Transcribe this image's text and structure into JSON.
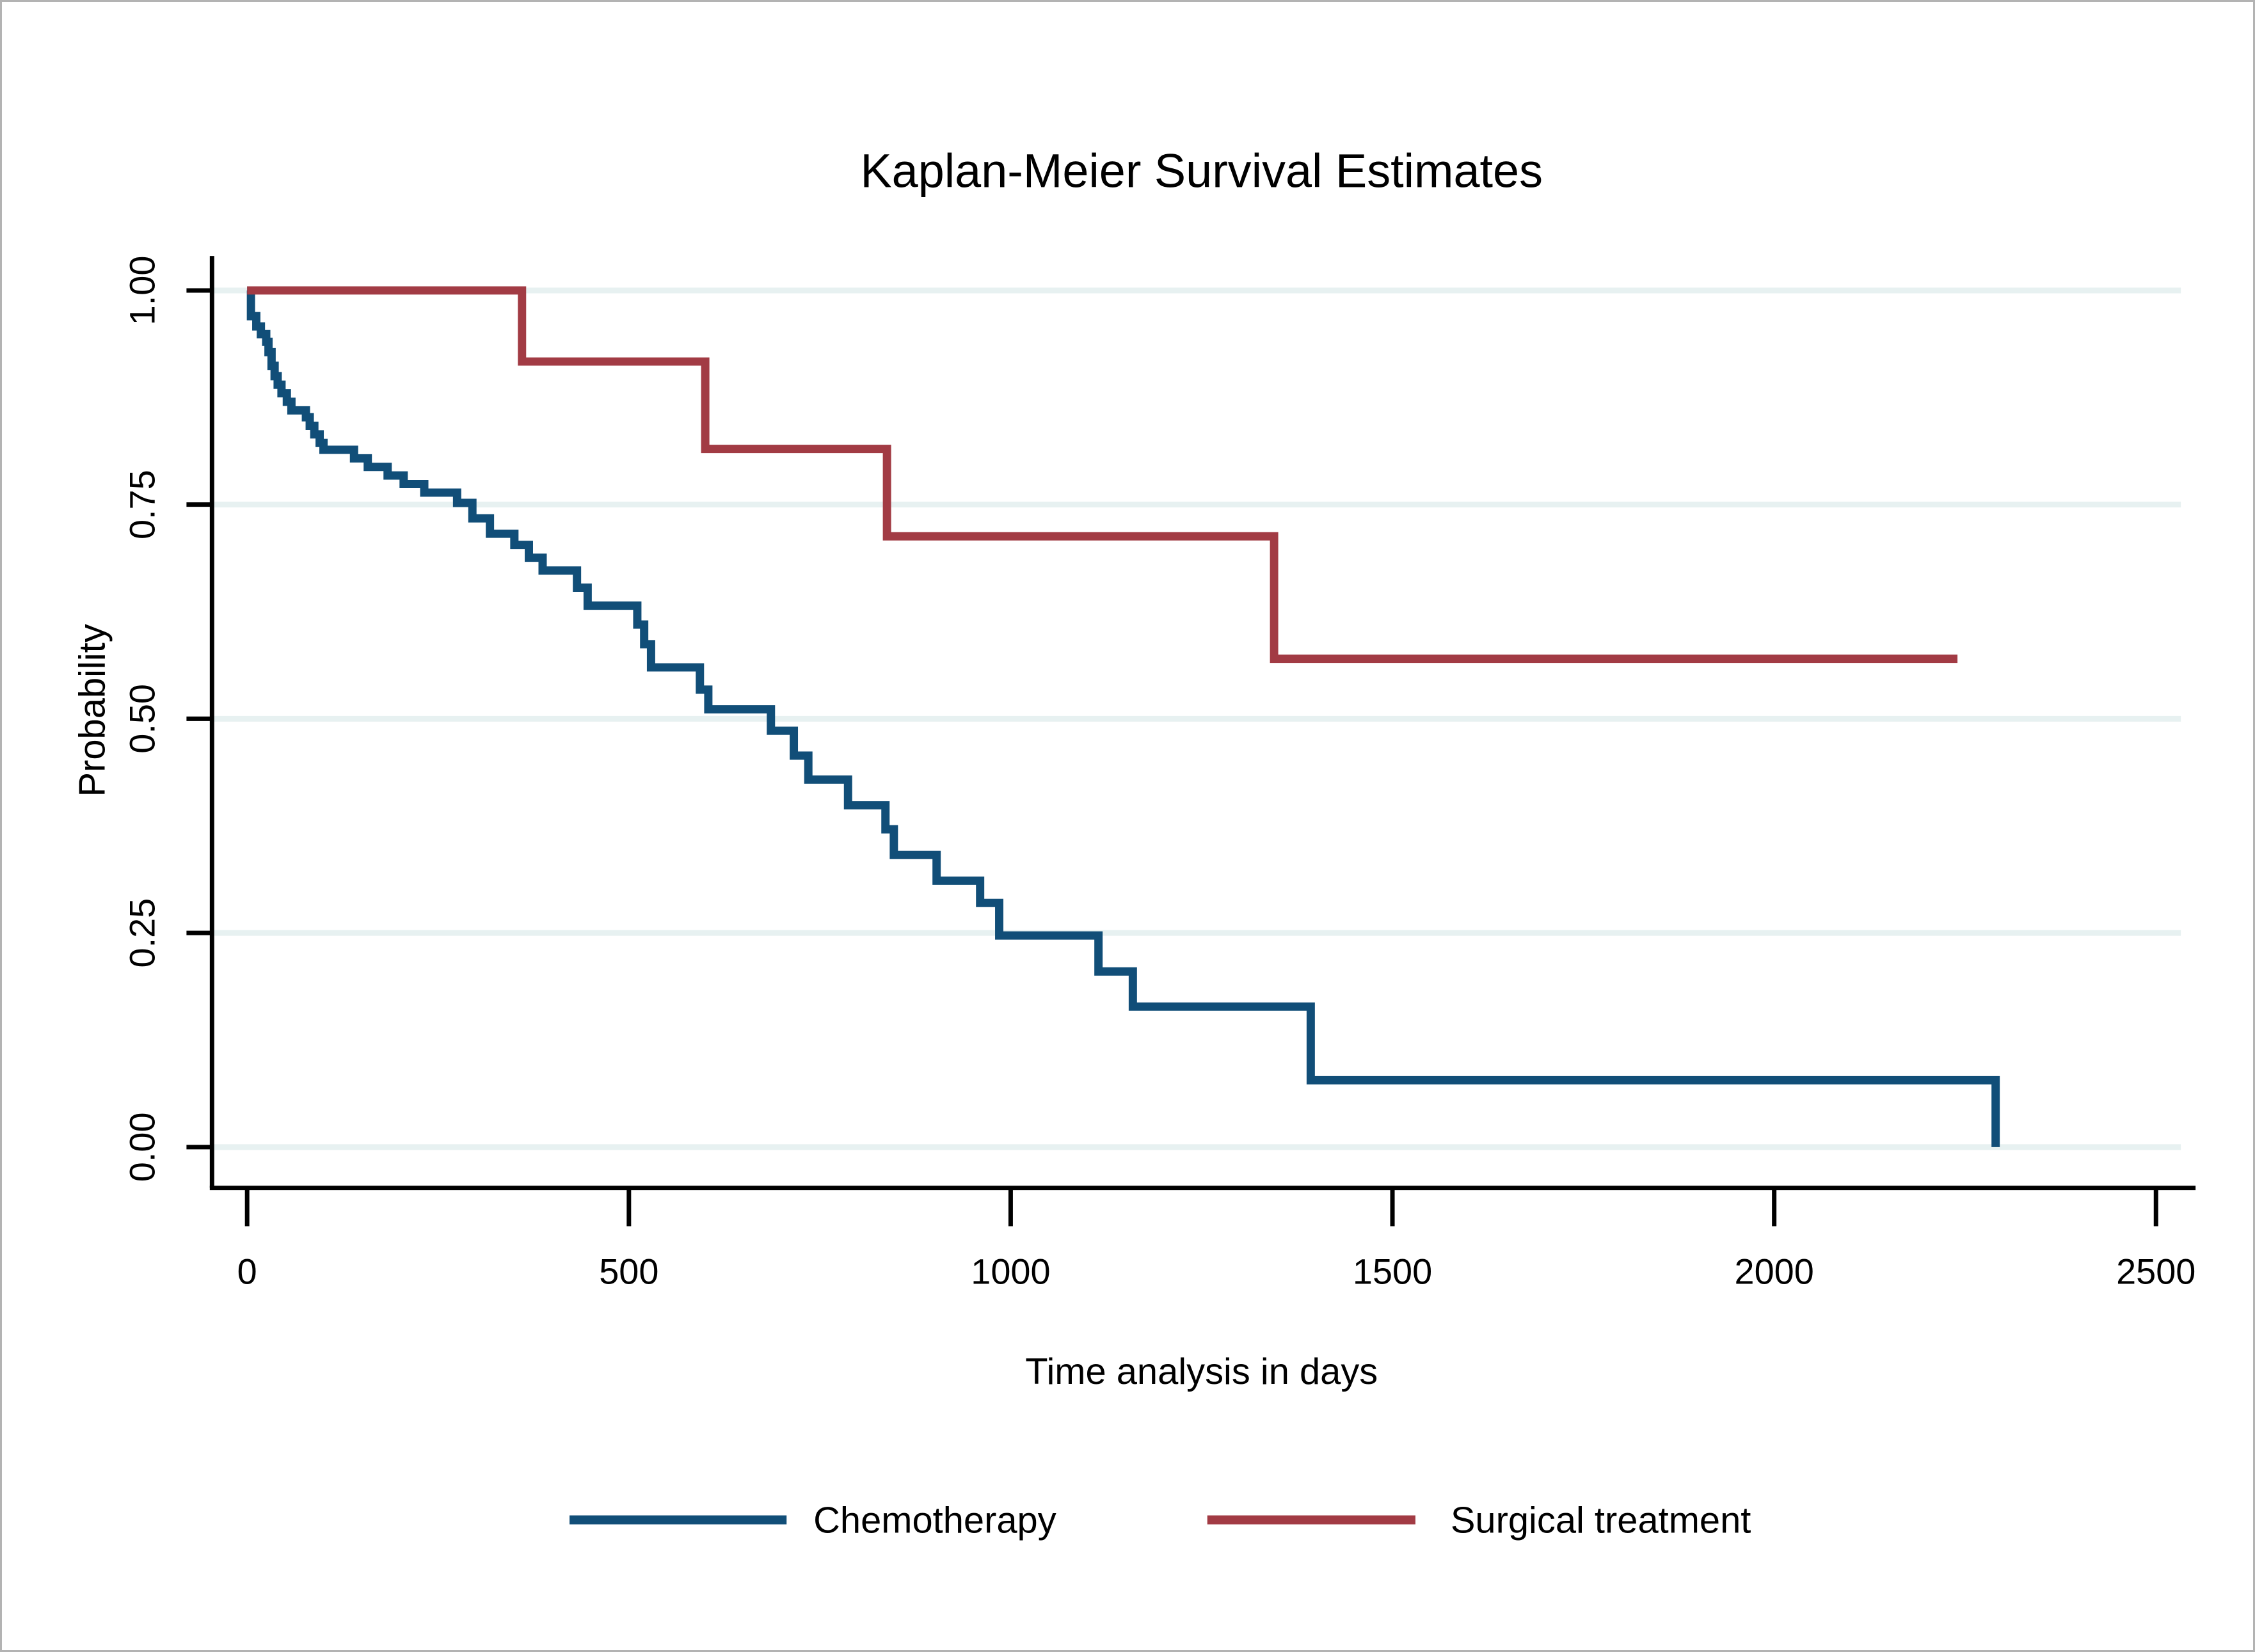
{
  "chart_data": {
    "type": "line",
    "subtype": "kaplan-meier-step",
    "title": "Kaplan-Meier Survival Estimates",
    "title_color": "#1b3a6b",
    "xlabel": "Time analysis in days",
    "ylabel": "Probability",
    "xticks": [
      0,
      500,
      1000,
      1500,
      2000,
      2500
    ],
    "ytick_labels": [
      "0.00",
      "0.25",
      "0.50",
      "0.75",
      "1.00"
    ],
    "ytick_values": [
      0,
      0.25,
      0.5,
      0.75,
      1.0
    ],
    "xlim": [
      0,
      2500
    ],
    "ylim": [
      0,
      1
    ],
    "grid": "horizontal",
    "gridline_color": "#e7f1f1",
    "legend_position": "bottom-center",
    "series": [
      {
        "name": "Chemotherapy",
        "color": "#114e78",
        "end_day": 2290,
        "steps": [
          [
            0,
            1.0
          ],
          [
            5,
            0.97
          ],
          [
            12,
            0.958
          ],
          [
            18,
            0.949
          ],
          [
            25,
            0.94
          ],
          [
            28,
            0.928
          ],
          [
            32,
            0.912
          ],
          [
            36,
            0.9
          ],
          [
            40,
            0.89
          ],
          [
            45,
            0.88
          ],
          [
            52,
            0.87
          ],
          [
            58,
            0.86
          ],
          [
            77,
            0.852
          ],
          [
            82,
            0.842
          ],
          [
            88,
            0.832
          ],
          [
            95,
            0.822
          ],
          [
            100,
            0.814
          ],
          [
            140,
            0.804
          ],
          [
            158,
            0.794
          ],
          [
            184,
            0.784
          ],
          [
            205,
            0.774
          ],
          [
            232,
            0.764
          ],
          [
            275,
            0.752
          ],
          [
            295,
            0.734
          ],
          [
            318,
            0.716
          ],
          [
            350,
            0.703
          ],
          [
            369,
            0.688
          ],
          [
            387,
            0.673
          ],
          [
            432,
            0.653
          ],
          [
            446,
            0.632
          ],
          [
            511,
            0.61
          ],
          [
            520,
            0.587
          ],
          [
            529,
            0.56
          ],
          [
            593,
            0.534
          ],
          [
            604,
            0.511
          ],
          [
            686,
            0.486
          ],
          [
            716,
            0.457
          ],
          [
            735,
            0.429
          ],
          [
            787,
            0.399
          ],
          [
            836,
            0.371
          ],
          [
            847,
            0.341
          ],
          [
            903,
            0.311
          ],
          [
            960,
            0.285
          ],
          [
            985,
            0.247
          ],
          [
            1115,
            0.205
          ],
          [
            1160,
            0.164
          ],
          [
            1393,
            0.078
          ],
          [
            2290,
            0.0
          ]
        ]
      },
      {
        "name": "Surgical treatment",
        "color": "#a23b44",
        "end_day": 2240,
        "steps": [
          [
            0,
            1.0
          ],
          [
            360,
            0.917
          ],
          [
            600,
            0.815
          ],
          [
            838,
            0.713
          ],
          [
            1345,
            0.57
          ]
        ]
      }
    ]
  }
}
